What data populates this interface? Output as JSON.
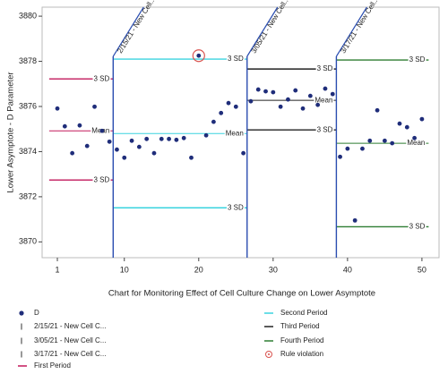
{
  "chart_data": {
    "type": "control",
    "y_label": "Lower Asymptote - D Parameter",
    "x_label": "Chart for Monitoring Effect of Cell Culture Change on Lower Asymptote",
    "xlim": [
      -1.05,
      52.3
    ],
    "ylim": [
      3869.3,
      3880.4
    ],
    "xticks": [
      1,
      10,
      20,
      30,
      40,
      50
    ],
    "yticks": [
      3870,
      3872,
      3874,
      3876,
      3878,
      3880
    ],
    "points": {
      "name": "D",
      "color": "#1f2d7a",
      "x": [
        1,
        2,
        3,
        4,
        5,
        6,
        7,
        8,
        9,
        10,
        11,
        12,
        13,
        14,
        15,
        16,
        17,
        18,
        19,
        20,
        21,
        22,
        23,
        24,
        25,
        26,
        27,
        28,
        29,
        30,
        31,
        32,
        33,
        34,
        35,
        36,
        37,
        38,
        39,
        40,
        41,
        42,
        43,
        44,
        45,
        46,
        47,
        48,
        49,
        50
      ],
      "values": [
        3875.91,
        3875.12,
        3873.93,
        3875.16,
        3874.25,
        3875.99,
        3874.92,
        3874.44,
        3874.09,
        3873.73,
        3874.48,
        3874.21,
        3874.56,
        3873.93,
        3874.56,
        3874.56,
        3874.52,
        3874.6,
        3873.73,
        3878.25,
        3874.72,
        3875.32,
        3875.71,
        3876.15,
        3875.99,
        3873.93,
        3876.23,
        3876.75,
        3876.67,
        3876.63,
        3875.99,
        3876.31,
        3876.71,
        3875.91,
        3876.47,
        3876.07,
        3876.79,
        3876.55,
        3873.77,
        3874.13,
        3870.95,
        3874.13,
        3874.48,
        3875.83,
        3874.48,
        3874.37,
        3875.24,
        3875.08,
        3874.6,
        3875.44
      ]
    },
    "changes": [
      {
        "x": 8.5,
        "label": "2/15/21 - New Cell...",
        "legend": "2/15/21 - New Cell C...",
        "color": "#2a4db0"
      },
      {
        "x": 26.5,
        "label": "3/05/21 - New Cell...",
        "legend": "3/05/21 - New Cell C...",
        "color": "#2a4db0"
      },
      {
        "x": 38.5,
        "label": "3/17/21 - New Cell...",
        "legend": "3/17/21 - New Cell C...",
        "color": "#2a4db0"
      }
    ],
    "periods": [
      {
        "name": "First Period",
        "color": "#c2185b",
        "x": [
          -0.1,
          8.5
        ],
        "ucl": 3877.22,
        "mean": 3874.92,
        "lcl": 3872.74,
        "ucl_label": "3 SD",
        "mean_label": "Mean",
        "lcl_label": "3 SD"
      },
      {
        "name": "Second Period",
        "color": "#3ad3df",
        "x": [
          8.5,
          26.5
        ],
        "ucl": 3878.1,
        "mean": 3874.8,
        "lcl": 3871.51,
        "ucl_label": "3 SD",
        "mean_label": "Mean",
        "lcl_label": "3 SD"
      },
      {
        "name": "Third Period",
        "color": "#222222",
        "x": [
          26.5,
          38.5
        ],
        "ucl": 3877.66,
        "mean": 3876.27,
        "lcl": 3874.96,
        "ucl_label": "3 SD",
        "mean_label": "Mean",
        "lcl_label": "3 SD"
      },
      {
        "name": "Fourth Period",
        "color": "#2e7d32",
        "x": [
          38.5,
          50.9
        ],
        "ucl": 3878.06,
        "mean": 3874.37,
        "lcl": 3870.67,
        "ucl_label": "3 SD",
        "mean_label": "Mean",
        "lcl_label": "3 SD"
      }
    ],
    "violations": {
      "name": "Rule violation",
      "color": "#d9534f",
      "x": [
        20
      ],
      "values": [
        3878.25
      ]
    }
  }
}
